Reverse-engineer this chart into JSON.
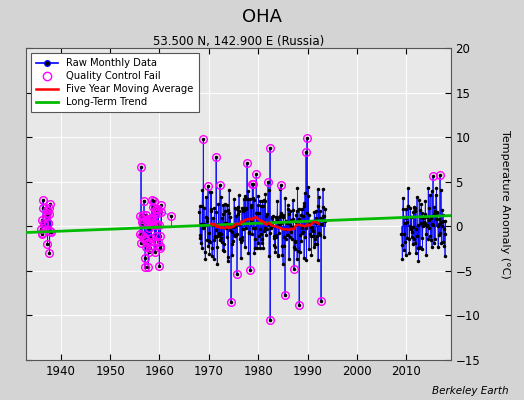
{
  "title": "OHA",
  "subtitle": "53.500 N, 142.900 E (Russia)",
  "ylabel": "Temperature Anomaly (°C)",
  "credit": "Berkeley Earth",
  "xlim": [
    1933,
    2019
  ],
  "ylim": [
    -15,
    20
  ],
  "yticks": [
    -15,
    -10,
    -5,
    0,
    5,
    10,
    15,
    20
  ],
  "xticks": [
    1940,
    1950,
    1960,
    1970,
    1980,
    1990,
    2000,
    2010
  ],
  "fig_bg_color": "#d4d4d4",
  "plot_bg_color": "#e8e8e8",
  "raw_color": "#0000ff",
  "dot_color": "#000000",
  "qc_color": "#ff00ff",
  "moving_avg_color": "#ff0000",
  "trend_color": "#00bb00",
  "trend_x": [
    1933,
    2019
  ],
  "trend_y": [
    -0.7,
    1.2
  ]
}
